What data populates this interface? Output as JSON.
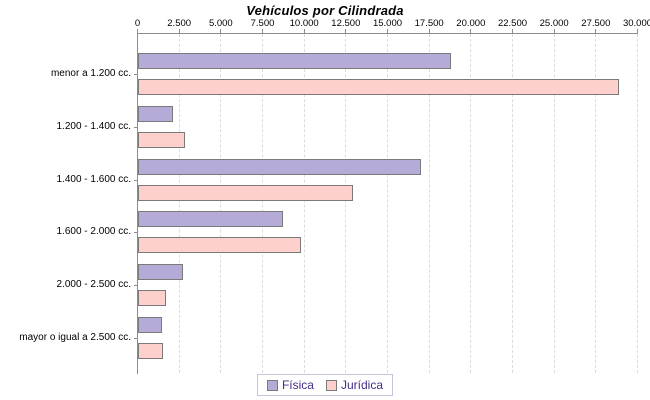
{
  "chart_data": {
    "type": "bar",
    "orientation": "horizontal",
    "title": "Vehículos por Cilindrada",
    "categories": [
      "menor a 1.200 cc.",
      "1.200 - 1.400 cc.",
      "1.400 - 1.600 cc.",
      "1.600 - 2.000 cc.",
      "2.000 - 2.500 cc.",
      "mayor o igual a 2.500 cc."
    ],
    "series": [
      {
        "name": "Física",
        "color": "#b6abd7",
        "values": [
          18800,
          2100,
          17000,
          8700,
          2700,
          1450
        ]
      },
      {
        "name": "Jurídica",
        "color": "#fdd0cc",
        "values": [
          28850,
          2800,
          12900,
          9750,
          1700,
          1500
        ]
      }
    ],
    "xlim": [
      0,
      30000
    ],
    "x_ticks": [
      0,
      2500,
      5000,
      7500,
      10000,
      12500,
      15000,
      17500,
      20000,
      22500,
      25000,
      27500,
      30000
    ],
    "x_tick_labels": [
      "0",
      "2.500",
      "5.000",
      "7.500",
      "10.000",
      "12.500",
      "15.000",
      "17.500",
      "20.000",
      "22.500",
      "25.000",
      "27.500",
      "30.000"
    ],
    "grid": "vertical-dashed",
    "axis_position": "top",
    "legend_position": "bottom"
  },
  "legend": {
    "items": [
      {
        "label": "Física"
      },
      {
        "label": "Jurídica"
      }
    ]
  },
  "colors": {
    "fisica_fill": "#b6abd7",
    "juridica_fill": "#fdd0cc",
    "bar_border": "#7a7a7a",
    "axis_line": "#8c8c8c",
    "gridline": "#dcdcdc",
    "tick_label": "#000000",
    "category_label": "#000000",
    "title": "#000000",
    "legend_text": "#462c87",
    "legend_border": "#c4c4dc",
    "background": "#ffffff"
  }
}
